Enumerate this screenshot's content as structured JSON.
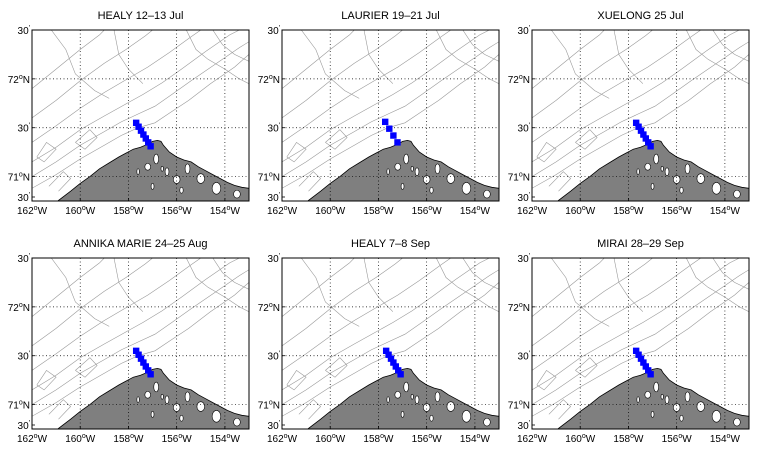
{
  "figure": {
    "panels": [
      {
        "title": "HEALY  12–13 Jul",
        "stations": [
          [
            -157.68,
            71.55
          ],
          [
            -157.58,
            71.51
          ],
          [
            -157.48,
            71.47
          ],
          [
            -157.38,
            71.43
          ],
          [
            -157.28,
            71.39
          ],
          [
            -157.18,
            71.35
          ],
          [
            -157.08,
            71.31
          ]
        ]
      },
      {
        "title": "LAURIER  19–21 Jul",
        "stations": [
          [
            -157.72,
            71.56
          ],
          [
            -157.55,
            71.49
          ],
          [
            -157.38,
            71.42
          ],
          [
            -157.21,
            71.35
          ]
        ]
      },
      {
        "title": "XUELONG 25 Jul",
        "stations": [
          [
            -157.68,
            71.55
          ],
          [
            -157.58,
            71.51
          ],
          [
            -157.48,
            71.47
          ],
          [
            -157.38,
            71.43
          ],
          [
            -157.28,
            71.39
          ],
          [
            -157.18,
            71.35
          ],
          [
            -157.08,
            71.31
          ]
        ]
      },
      {
        "title": "ANNIKA MARIE  24–25 Aug",
        "stations": [
          [
            -157.68,
            71.55
          ],
          [
            -157.58,
            71.51
          ],
          [
            -157.48,
            71.47
          ],
          [
            -157.38,
            71.43
          ],
          [
            -157.28,
            71.39
          ],
          [
            -157.18,
            71.35
          ],
          [
            -157.08,
            71.31
          ]
        ]
      },
      {
        "title": "HEALY  7–8 Sep",
        "stations": [
          [
            -157.68,
            71.55
          ],
          [
            -157.58,
            71.51
          ],
          [
            -157.48,
            71.47
          ],
          [
            -157.38,
            71.43
          ],
          [
            -157.28,
            71.39
          ],
          [
            -157.18,
            71.35
          ],
          [
            -157.08,
            71.31
          ]
        ]
      },
      {
        "title": "MIRAI  28–29 Sep",
        "stations": [
          [
            -157.68,
            71.55
          ],
          [
            -157.58,
            71.51
          ],
          [
            -157.48,
            71.47
          ],
          [
            -157.38,
            71.43
          ],
          [
            -157.28,
            71.39
          ],
          [
            -157.18,
            71.35
          ],
          [
            -157.08,
            71.31
          ]
        ]
      }
    ],
    "lon_range": [
      -162,
      -153
    ],
    "lat_range": [
      70.75,
      72.5
    ],
    "lon_ticks": [
      {
        "value": -162,
        "num": "162",
        "sup": "o",
        "hem": "W"
      },
      {
        "value": -160,
        "num": "160",
        "sup": "o",
        "hem": "W"
      },
      {
        "value": -158,
        "num": "158",
        "sup": "o",
        "hem": "W"
      },
      {
        "value": -156,
        "num": "156",
        "sup": "o",
        "hem": "W"
      },
      {
        "value": -154,
        "num": "154",
        "sup": "o",
        "hem": "W"
      }
    ],
    "lat_ticks": [
      {
        "value": 72.5,
        "num": "30",
        "sup": "'",
        "hem": ""
      },
      {
        "value": 72.0,
        "num": "72",
        "sup": "o",
        "hem": "N"
      },
      {
        "value": 71.5,
        "num": "30",
        "sup": "'",
        "hem": ""
      },
      {
        "value": 71.0,
        "num": "71",
        "sup": "o",
        "hem": "N"
      },
      {
        "value": 70.5,
        "num": "30",
        "sup": "'",
        "hem": ""
      }
    ],
    "grid": "dotted",
    "colors": {
      "land": "#7f7f7f",
      "station": "#0000ff",
      "contour": "#9a9a9a",
      "grid": "#000000",
      "frame": "#000000"
    }
  }
}
